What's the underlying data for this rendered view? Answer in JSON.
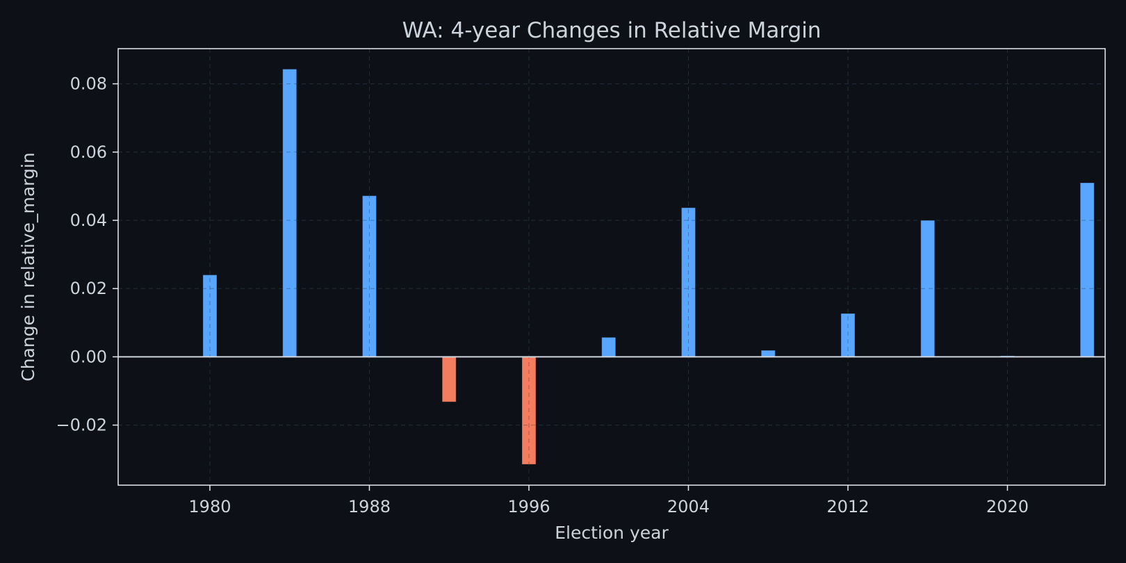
{
  "chart_data": {
    "type": "bar",
    "title": "WA: 4-year Changes in Relative Margin",
    "xlabel": "Election year",
    "ylabel": "Change in relative_margin",
    "x": [
      1980,
      1984,
      1988,
      1992,
      1996,
      2000,
      2004,
      2008,
      2012,
      2016,
      2020,
      2024
    ],
    "values": [
      0.024,
      0.0843,
      0.0472,
      -0.0132,
      -0.0315,
      0.0057,
      0.0437,
      0.0019,
      0.0127,
      0.04,
      0.0003,
      0.051
    ],
    "xlim": [
      1975.4,
      2024.9
    ],
    "ylim": [
      -0.0376,
      0.0903
    ],
    "xticks": [
      1980,
      1988,
      1996,
      2004,
      2012,
      2020
    ],
    "yticks": [
      -0.02,
      0.0,
      0.02,
      0.04,
      0.06,
      0.08
    ],
    "ytick_labels": [
      "−0.02",
      "0.00",
      "0.02",
      "0.04",
      "0.06",
      "0.08"
    ],
    "grid": true,
    "colors": {
      "positive": "#58a6ff",
      "negative": "#f47c5f",
      "background": "#0d1117"
    }
  }
}
